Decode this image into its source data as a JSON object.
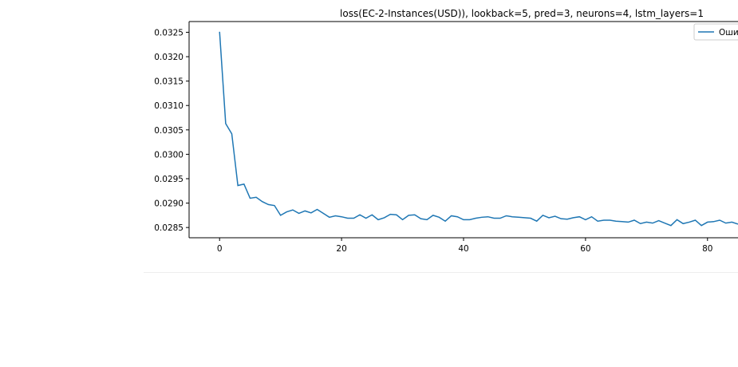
{
  "chart_data": {
    "type": "line",
    "title": "loss(EC-2-Instances(USD)), lookback=5, pred=3, neurons=4, lstm_layers=1",
    "xlabel": "",
    "ylabel": "",
    "xlim": [
      -5,
      85
    ],
    "ylim": [
      0.02829,
      0.03272
    ],
    "x_ticks": [
      0,
      20,
      40,
      60,
      80
    ],
    "x_tick_labels": [
      "0",
      "20",
      "40",
      "60",
      "80"
    ],
    "y_ticks": [
      0.0285,
      0.029,
      0.0295,
      0.03,
      0.0305,
      0.031,
      0.0315,
      0.032,
      0.0325
    ],
    "y_tick_labels": [
      "0.0285",
      "0.0290",
      "0.0295",
      "0.0300",
      "0.0305",
      "0.0310",
      "0.0315",
      "0.0320",
      "0.0325"
    ],
    "grid": false,
    "legend_position": "top-right",
    "series": [
      {
        "name": "Оши",
        "color": "#1f77b4",
        "x": [
          0,
          1,
          2,
          3,
          4,
          5,
          6,
          7,
          8,
          9,
          10,
          11,
          12,
          13,
          14,
          15,
          16,
          17,
          18,
          19,
          20,
          21,
          22,
          23,
          24,
          25,
          26,
          27,
          28,
          29,
          30,
          31,
          32,
          33,
          34,
          35,
          36,
          37,
          38,
          39,
          40,
          41,
          42,
          43,
          44,
          45,
          46,
          47,
          48,
          49,
          50,
          51,
          52,
          53,
          54,
          55,
          56,
          57,
          58,
          59,
          60,
          61,
          62,
          63,
          64,
          65,
          66,
          67,
          68,
          69,
          70,
          71,
          72,
          73,
          74,
          75,
          76,
          77,
          78,
          79,
          80,
          81,
          82,
          83,
          84,
          85
        ],
        "values": [
          0.03251,
          0.03063,
          0.03042,
          0.02936,
          0.02939,
          0.0291,
          0.02912,
          0.02903,
          0.02897,
          0.02895,
          0.02875,
          0.02882,
          0.02886,
          0.02879,
          0.02884,
          0.0288,
          0.02887,
          0.02879,
          0.02871,
          0.02874,
          0.02872,
          0.02869,
          0.02869,
          0.02876,
          0.02869,
          0.02876,
          0.02866,
          0.0287,
          0.02877,
          0.02876,
          0.02866,
          0.02875,
          0.02876,
          0.02868,
          0.02866,
          0.02875,
          0.02871,
          0.02863,
          0.02874,
          0.02872,
          0.02866,
          0.02866,
          0.02869,
          0.02871,
          0.02872,
          0.02869,
          0.02869,
          0.02874,
          0.02872,
          0.02871,
          0.0287,
          0.02869,
          0.02863,
          0.02875,
          0.0287,
          0.02873,
          0.02868,
          0.02867,
          0.0287,
          0.02872,
          0.02866,
          0.02872,
          0.02863,
          0.02865,
          0.02865,
          0.02863,
          0.02862,
          0.02861,
          0.02865,
          0.02858,
          0.02861,
          0.02859,
          0.02864,
          0.02859,
          0.02854,
          0.02866,
          0.02858,
          0.02861,
          0.02865,
          0.02854,
          0.02861,
          0.02862,
          0.02865,
          0.02859,
          0.02861,
          0.02857
        ]
      }
    ]
  }
}
